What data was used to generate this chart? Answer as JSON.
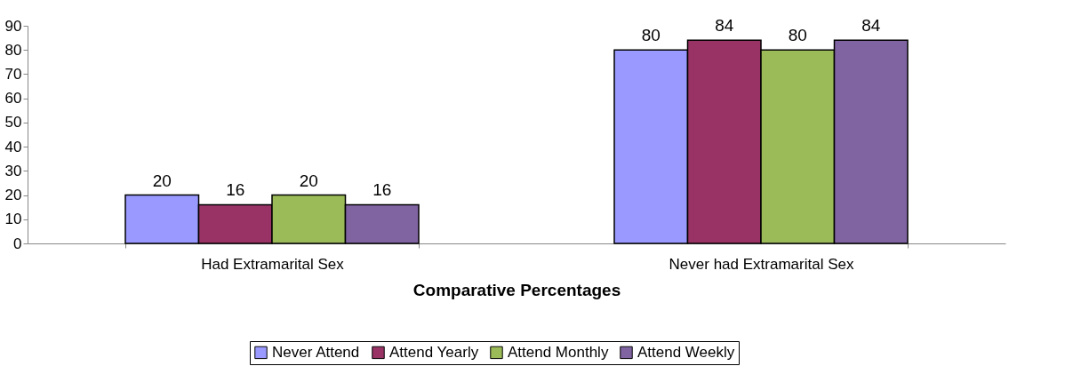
{
  "chart_data": {
    "type": "bar",
    "xlabel": "Comparative Percentages",
    "categories": [
      "Had Extramarital Sex",
      "Never had Extramarital Sex"
    ],
    "series": [
      {
        "name": "Never Attend",
        "color": "#9999ff",
        "values": [
          20,
          80
        ]
      },
      {
        "name": "Attend Yearly",
        "color": "#993366",
        "values": [
          16,
          84
        ]
      },
      {
        "name": "Attend Monthly",
        "color": "#9bbb59",
        "values": [
          20,
          80
        ]
      },
      {
        "name": "Attend Weekly",
        "color": "#8064a2",
        "values": [
          16,
          84
        ]
      }
    ],
    "ylim": [
      0,
      90
    ],
    "yticks": [
      0,
      10,
      20,
      30,
      40,
      50,
      60,
      70,
      80,
      90
    ],
    "grid": false,
    "legend": "bottom",
    "data_labels": true
  }
}
